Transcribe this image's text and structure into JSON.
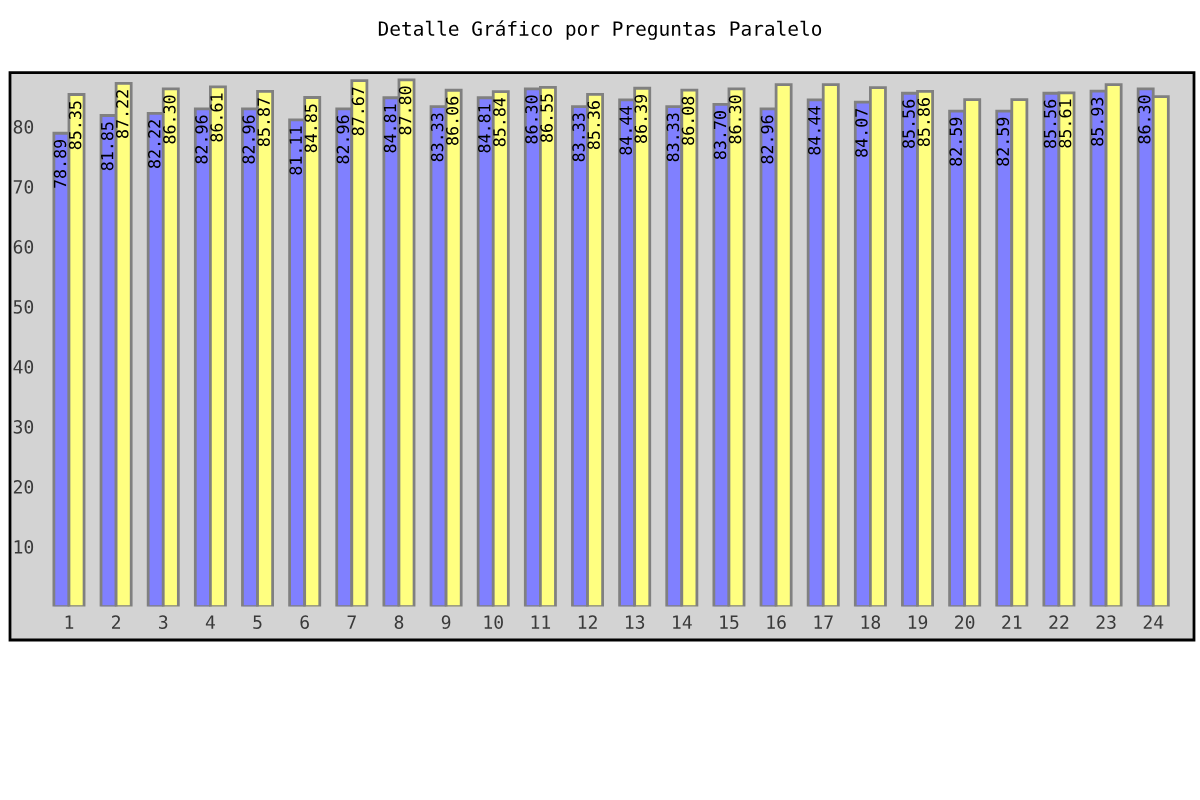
{
  "chart_data": {
    "type": "bar",
    "title": "Detalle Gráfico por Preguntas Paralelo",
    "categories": [
      "1",
      "2",
      "3",
      "4",
      "5",
      "6",
      "7",
      "8",
      "9",
      "10",
      "11",
      "12",
      "13",
      "14",
      "15",
      "16",
      "17",
      "18",
      "19",
      "20",
      "21",
      "22",
      "23",
      "24"
    ],
    "series": [
      {
        "color": "#8080ff",
        "values": [
          78.89,
          81.85,
          82.22,
          82.96,
          82.96,
          81.11,
          82.96,
          84.81,
          83.33,
          84.81,
          86.3,
          83.33,
          84.44,
          83.33,
          83.7,
          82.96,
          84.44,
          84.07,
          85.56,
          82.59,
          82.59,
          85.56,
          85.93,
          86.3
        ],
        "value_labels": [
          "78.89",
          "81.85",
          "82.22",
          "82.96",
          "82.96",
          "81.11",
          "82.96",
          "84.81",
          "83.33",
          "84.81",
          "86.30",
          "83.33",
          "84.44",
          "83.33",
          "83.70",
          "82.96",
          "84.44",
          "84.07",
          "85.56",
          "82.59",
          "82.59",
          "85.56",
          "85.93",
          "86.30"
        ]
      },
      {
        "color": "#ffff80",
        "values": [
          85.35,
          87.22,
          86.3,
          86.61,
          85.87,
          84.85,
          87.67,
          87.8,
          86.06,
          85.84,
          86.55,
          85.36,
          86.39,
          86.08,
          86.3,
          87,
          87,
          86.5,
          85.86,
          84.5,
          84.5,
          85.61,
          87,
          85
        ],
        "value_labels": [
          "85.35",
          "87.22",
          "86.30",
          "86.61",
          "85.87",
          "84.85",
          "87.67",
          "87.80",
          "86.06",
          "85.84",
          "86.55",
          "85.36",
          "86.39",
          "86.08",
          "86.30",
          null,
          null,
          null,
          "85.86",
          null,
          null,
          "85.61",
          null,
          null
        ]
      }
    ],
    "ylim": [
      0,
      89
    ],
    "yticks": [
      10,
      20,
      30,
      40,
      50,
      60,
      70,
      80
    ]
  }
}
